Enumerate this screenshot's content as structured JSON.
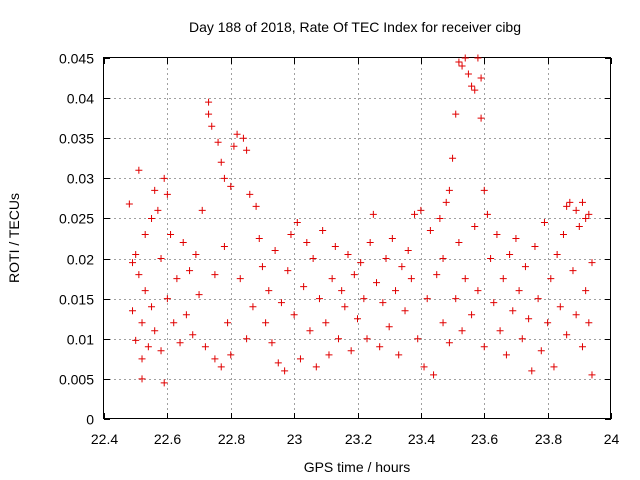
{
  "chart_data": {
    "type": "scatter",
    "title": "Day 188 of 2018, Rate Of TEC Index for receiver cibg",
    "xlabel": "GPS time / hours",
    "ylabel": "ROTI / TECUs",
    "xlim": [
      22.4,
      24.0
    ],
    "ylim": [
      0,
      0.045
    ],
    "xticks": [
      22.4,
      22.6,
      22.8,
      23.0,
      23.2,
      23.4,
      23.6,
      23.8,
      24.0
    ],
    "xtick_labels": [
      "22.4",
      "22.6",
      "22.8",
      "23",
      "23.2",
      "23.4",
      "23.6",
      "23.8",
      "24"
    ],
    "yticks": [
      0,
      0.005,
      0.01,
      0.015,
      0.02,
      0.025,
      0.03,
      0.035,
      0.04,
      0.045
    ],
    "ytick_labels": [
      "0",
      "0.005",
      "0.01",
      "0.015",
      "0.02",
      "0.025",
      "0.03",
      "0.035",
      "0.04",
      "0.045"
    ],
    "grid": true,
    "marker": "+",
    "series": [
      {
        "name": "ROTI",
        "color": "#e00000",
        "points": [
          [
            22.48,
            0.0268
          ],
          [
            22.49,
            0.0195
          ],
          [
            22.49,
            0.0135
          ],
          [
            22.5,
            0.0098
          ],
          [
            22.5,
            0.0205
          ],
          [
            22.51,
            0.031
          ],
          [
            22.51,
            0.018
          ],
          [
            22.52,
            0.012
          ],
          [
            22.52,
            0.0075
          ],
          [
            22.52,
            0.005
          ],
          [
            22.53,
            0.023
          ],
          [
            22.53,
            0.016
          ],
          [
            22.54,
            0.009
          ],
          [
            22.55,
            0.025
          ],
          [
            22.55,
            0.014
          ],
          [
            22.56,
            0.0285
          ],
          [
            22.56,
            0.011
          ],
          [
            22.57,
            0.026
          ],
          [
            22.58,
            0.02
          ],
          [
            22.58,
            0.0085
          ],
          [
            22.59,
            0.03
          ],
          [
            22.59,
            0.0045
          ],
          [
            22.6,
            0.028
          ],
          [
            22.6,
            0.015
          ],
          [
            22.61,
            0.023
          ],
          [
            22.62,
            0.012
          ],
          [
            22.63,
            0.0175
          ],
          [
            22.64,
            0.0095
          ],
          [
            22.65,
            0.022
          ],
          [
            22.66,
            0.013
          ],
          [
            22.67,
            0.0185
          ],
          [
            22.68,
            0.0105
          ],
          [
            22.69,
            0.0205
          ],
          [
            22.7,
            0.0155
          ],
          [
            22.71,
            0.026
          ],
          [
            22.72,
            0.009
          ],
          [
            22.73,
            0.038
          ],
          [
            22.73,
            0.0395
          ],
          [
            22.74,
            0.0365
          ],
          [
            22.75,
            0.018
          ],
          [
            22.75,
            0.0075
          ],
          [
            22.76,
            0.0345
          ],
          [
            22.77,
            0.032
          ],
          [
            22.77,
            0.0065
          ],
          [
            22.78,
            0.0215
          ],
          [
            22.78,
            0.03
          ],
          [
            22.79,
            0.012
          ],
          [
            22.8,
            0.029
          ],
          [
            22.8,
            0.008
          ],
          [
            22.81,
            0.034
          ],
          [
            22.82,
            0.0355
          ],
          [
            22.83,
            0.0175
          ],
          [
            22.84,
            0.035
          ],
          [
            22.85,
            0.0335
          ],
          [
            22.85,
            0.01
          ],
          [
            22.86,
            0.028
          ],
          [
            22.87,
            0.014
          ],
          [
            22.88,
            0.0265
          ],
          [
            22.89,
            0.0225
          ],
          [
            22.9,
            0.019
          ],
          [
            22.91,
            0.012
          ],
          [
            22.92,
            0.016
          ],
          [
            22.93,
            0.0095
          ],
          [
            22.94,
            0.021
          ],
          [
            22.95,
            0.007
          ],
          [
            22.96,
            0.0145
          ],
          [
            22.97,
            0.006
          ],
          [
            22.98,
            0.0185
          ],
          [
            22.99,
            0.023
          ],
          [
            23.0,
            0.013
          ],
          [
            23.01,
            0.0245
          ],
          [
            23.02,
            0.0075
          ],
          [
            23.03,
            0.0165
          ],
          [
            23.04,
            0.022
          ],
          [
            23.05,
            0.011
          ],
          [
            23.06,
            0.02
          ],
          [
            23.07,
            0.0065
          ],
          [
            23.08,
            0.015
          ],
          [
            23.09,
            0.0235
          ],
          [
            23.1,
            0.012
          ],
          [
            23.11,
            0.008
          ],
          [
            23.12,
            0.0175
          ],
          [
            23.13,
            0.0215
          ],
          [
            23.14,
            0.01
          ],
          [
            23.15,
            0.016
          ],
          [
            23.16,
            0.014
          ],
          [
            23.17,
            0.0205
          ],
          [
            23.18,
            0.0085
          ],
          [
            23.19,
            0.018
          ],
          [
            23.2,
            0.0125
          ],
          [
            23.21,
            0.0195
          ],
          [
            23.22,
            0.015
          ],
          [
            23.23,
            0.01
          ],
          [
            23.24,
            0.022
          ],
          [
            23.25,
            0.0255
          ],
          [
            23.26,
            0.017
          ],
          [
            23.27,
            0.009
          ],
          [
            23.28,
            0.0145
          ],
          [
            23.29,
            0.02
          ],
          [
            23.3,
            0.0115
          ],
          [
            23.31,
            0.0225
          ],
          [
            23.32,
            0.016
          ],
          [
            23.33,
            0.008
          ],
          [
            23.34,
            0.019
          ],
          [
            23.35,
            0.0135
          ],
          [
            23.36,
            0.021
          ],
          [
            23.37,
            0.0175
          ],
          [
            23.38,
            0.0255
          ],
          [
            23.39,
            0.01
          ],
          [
            23.4,
            0.026
          ],
          [
            23.41,
            0.0065
          ],
          [
            23.42,
            0.015
          ],
          [
            23.43,
            0.0235
          ],
          [
            23.44,
            0.0055
          ],
          [
            23.45,
            0.018
          ],
          [
            23.46,
            0.025
          ],
          [
            23.47,
            0.012
          ],
          [
            23.47,
            0.02
          ],
          [
            23.48,
            0.027
          ],
          [
            23.49,
            0.0285
          ],
          [
            23.49,
            0.0095
          ],
          [
            23.5,
            0.0325
          ],
          [
            23.51,
            0.038
          ],
          [
            23.51,
            0.015
          ],
          [
            23.52,
            0.022
          ],
          [
            23.52,
            0.0445
          ],
          [
            23.53,
            0.044
          ],
          [
            23.53,
            0.011
          ],
          [
            23.54,
            0.045
          ],
          [
            23.54,
            0.0175
          ],
          [
            23.55,
            0.043
          ],
          [
            23.56,
            0.013
          ],
          [
            23.56,
            0.0415
          ],
          [
            23.57,
            0.041
          ],
          [
            23.57,
            0.024
          ],
          [
            23.58,
            0.045
          ],
          [
            23.58,
            0.016
          ],
          [
            23.59,
            0.0425
          ],
          [
            23.59,
            0.0375
          ],
          [
            23.6,
            0.0285
          ],
          [
            23.6,
            0.009
          ],
          [
            23.61,
            0.0255
          ],
          [
            23.62,
            0.02
          ],
          [
            23.63,
            0.0145
          ],
          [
            23.64,
            0.023
          ],
          [
            23.65,
            0.011
          ],
          [
            23.66,
            0.0175
          ],
          [
            23.67,
            0.008
          ],
          [
            23.68,
            0.0205
          ],
          [
            23.69,
            0.0135
          ],
          [
            23.7,
            0.0225
          ],
          [
            23.71,
            0.016
          ],
          [
            23.72,
            0.01
          ],
          [
            23.73,
            0.019
          ],
          [
            23.74,
            0.0125
          ],
          [
            23.75,
            0.006
          ],
          [
            23.76,
            0.0215
          ],
          [
            23.77,
            0.015
          ],
          [
            23.78,
            0.0085
          ],
          [
            23.79,
            0.0245
          ],
          [
            23.8,
            0.012
          ],
          [
            23.81,
            0.0175
          ],
          [
            23.82,
            0.0065
          ],
          [
            23.83,
            0.0205
          ],
          [
            23.84,
            0.014
          ],
          [
            23.85,
            0.023
          ],
          [
            23.86,
            0.0265
          ],
          [
            23.86,
            0.0105
          ],
          [
            23.87,
            0.027
          ],
          [
            23.88,
            0.0185
          ],
          [
            23.89,
            0.026
          ],
          [
            23.89,
            0.013
          ],
          [
            23.9,
            0.024
          ],
          [
            23.91,
            0.027
          ],
          [
            23.91,
            0.009
          ],
          [
            23.92,
            0.025
          ],
          [
            23.92,
            0.016
          ],
          [
            23.93,
            0.0255
          ],
          [
            23.93,
            0.012
          ],
          [
            23.94,
            0.0055
          ],
          [
            23.94,
            0.0195
          ]
        ]
      }
    ]
  }
}
